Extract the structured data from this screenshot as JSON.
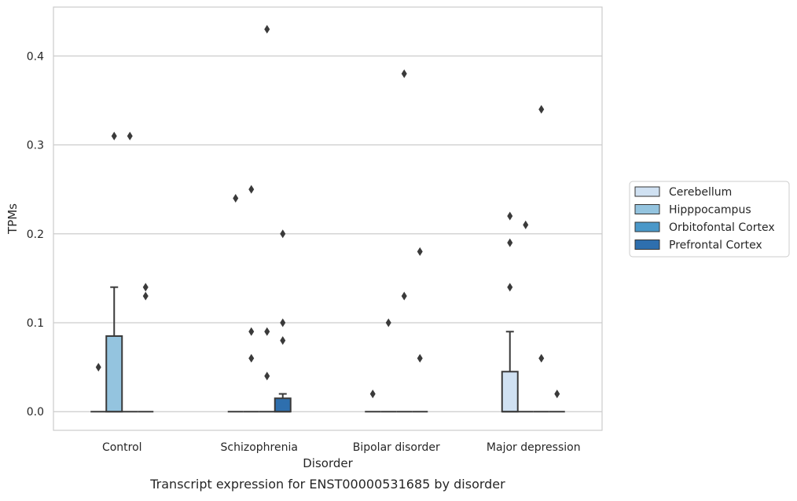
{
  "chart_data": {
    "type": "box",
    "caption": "Transcript expression for ENST00000531685 by disorder",
    "xlabel": "Disorder",
    "ylabel": "TPMs",
    "ylim": [
      -0.021,
      0.455
    ],
    "yticks": [
      0.0,
      0.1,
      0.2,
      0.3,
      0.4
    ],
    "ytick_labels": [
      "0.0",
      "0.1",
      "0.2",
      "0.3",
      "0.4"
    ],
    "grid": "horizontal",
    "legend_position": "right",
    "categories": [
      "Control",
      "Schizophrenia",
      "Bipolar disorder",
      "Major depression"
    ],
    "series": [
      {
        "name": "Cerebellum",
        "color": "#d0e1f2",
        "boxes": [
          {
            "q1": 0,
            "median": 0,
            "q3": 0,
            "whisker_low": 0,
            "whisker_high": 0,
            "outliers": [
              0.05
            ]
          },
          {
            "q1": 0,
            "median": 0,
            "q3": 0,
            "whisker_low": 0,
            "whisker_high": 0,
            "outliers": [
              0.24
            ]
          },
          {
            "q1": 0,
            "median": 0,
            "q3": 0,
            "whisker_low": 0,
            "whisker_high": 0,
            "outliers": [
              0.02
            ]
          },
          {
            "q1": 0,
            "median": 0,
            "q3": 0.045,
            "whisker_low": 0,
            "whisker_high": 0.09,
            "outliers": [
              0.14,
              0.19,
              0.22
            ]
          }
        ]
      },
      {
        "name": "Hipppocampus",
        "color": "#94c4df",
        "boxes": [
          {
            "q1": 0,
            "median": 0,
            "q3": 0.085,
            "whisker_low": 0,
            "whisker_high": 0.14,
            "outliers": [
              0.31
            ]
          },
          {
            "q1": 0,
            "median": 0,
            "q3": 0,
            "whisker_low": 0,
            "whisker_high": 0,
            "outliers": [
              0.06,
              0.09,
              0.25
            ]
          },
          {
            "q1": 0,
            "median": 0,
            "q3": 0,
            "whisker_low": 0,
            "whisker_high": 0,
            "outliers": [
              0.1
            ]
          },
          {
            "q1": 0,
            "median": 0,
            "q3": 0,
            "whisker_low": 0,
            "whisker_high": 0,
            "outliers": [
              0.21
            ]
          }
        ]
      },
      {
        "name": "Orbitofontal Cortex",
        "color": "#4a98c9",
        "boxes": [
          {
            "q1": 0,
            "median": 0,
            "q3": 0,
            "whisker_low": 0,
            "whisker_high": 0,
            "outliers": [
              0.31
            ]
          },
          {
            "q1": 0,
            "median": 0,
            "q3": 0,
            "whisker_low": 0,
            "whisker_high": 0,
            "outliers": [
              0.04,
              0.09,
              0.43
            ]
          },
          {
            "q1": 0,
            "median": 0,
            "q3": 0,
            "whisker_low": 0,
            "whisker_high": 0,
            "outliers": [
              0.13,
              0.38
            ]
          },
          {
            "q1": 0,
            "median": 0,
            "q3": 0,
            "whisker_low": 0,
            "whisker_high": 0,
            "outliers": [
              0.06,
              0.34
            ]
          }
        ]
      },
      {
        "name": "Prefrontal Cortex",
        "color": "#2e6fae",
        "boxes": [
          {
            "q1": 0,
            "median": 0,
            "q3": 0,
            "whisker_low": 0,
            "whisker_high": 0,
            "outliers": [
              0.13,
              0.14
            ]
          },
          {
            "q1": 0,
            "median": 0,
            "q3": 0.015,
            "whisker_low": 0,
            "whisker_high": 0.02,
            "outliers": [
              0.08,
              0.1,
              0.2
            ]
          },
          {
            "q1": 0,
            "median": 0,
            "q3": 0,
            "whisker_low": 0,
            "whisker_high": 0,
            "outliers": [
              0.06,
              0.18
            ]
          },
          {
            "q1": 0,
            "median": 0,
            "q3": 0,
            "whisker_low": 0,
            "whisker_high": 0,
            "outliers": [
              0.02
            ]
          }
        ]
      }
    ]
  }
}
